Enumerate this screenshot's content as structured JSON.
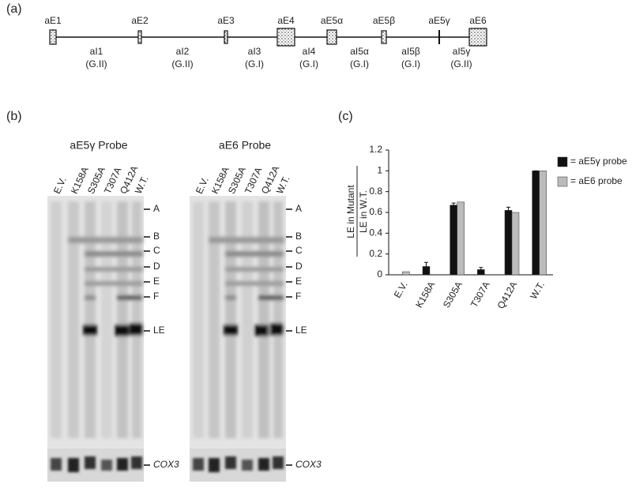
{
  "panels": {
    "a": "(a)",
    "b": "(b)",
    "c": "(c)"
  },
  "gene_map": {
    "exons": [
      "aE1",
      "aE2",
      "aE3",
      "aE4",
      "aE5α",
      "aE5β",
      "aE5γ",
      "aE6"
    ],
    "introns": [
      {
        "name": "aI1",
        "group": "(G.II)"
      },
      {
        "name": "aI2",
        "group": "(G.II)"
      },
      {
        "name": "aI3",
        "group": "(G.I)"
      },
      {
        "name": "aI4",
        "group": "(G.I)"
      },
      {
        "name": "aI5α",
        "group": "(G.I)"
      },
      {
        "name": "aI5β",
        "group": "(G.I)"
      },
      {
        "name": "aI5γ",
        "group": "(G.II)"
      }
    ]
  },
  "gels": [
    {
      "title": "aE5γ Probe",
      "lanes": [
        "E.V.",
        "K158A",
        "S305A",
        "T307A",
        "Q412A",
        "W.T."
      ],
      "bands": [
        "A",
        "B",
        "C",
        "D",
        "E",
        "F",
        "LE"
      ],
      "loading": "COX3"
    },
    {
      "title": "aE6 Probe",
      "lanes": [
        "E.V.",
        "K158A",
        "S305A",
        "T307A",
        "Q412A",
        "W.T."
      ],
      "bands": [
        "A",
        "B",
        "C",
        "D",
        "E",
        "F",
        "LE"
      ],
      "loading": "COX3"
    }
  ],
  "chart_data": {
    "type": "bar",
    "y_label_numerator": "LE in Mutant",
    "y_label_denominator": "LE in W.T.",
    "categories": [
      "E.V.",
      "K158A",
      "S305A",
      "T307A",
      "Q412A",
      "W.T."
    ],
    "series": [
      {
        "name": "= aE5γ probe",
        "color": "#111111",
        "values": [
          0,
          0.08,
          0.67,
          0.05,
          0.62,
          1.0
        ],
        "errors": [
          0,
          0.04,
          0.02,
          0.02,
          0.03,
          0
        ]
      },
      {
        "name": "= aE6 probe",
        "color": "#bbbbbb",
        "values": [
          0.03,
          0,
          0.7,
          0,
          0.6,
          1.0
        ]
      }
    ],
    "ylim": [
      0,
      1.2
    ],
    "yticks": [
      0,
      0.2,
      0.4,
      0.6,
      0.8,
      1,
      1.2
    ],
    "grid": false,
    "legend": "right"
  }
}
